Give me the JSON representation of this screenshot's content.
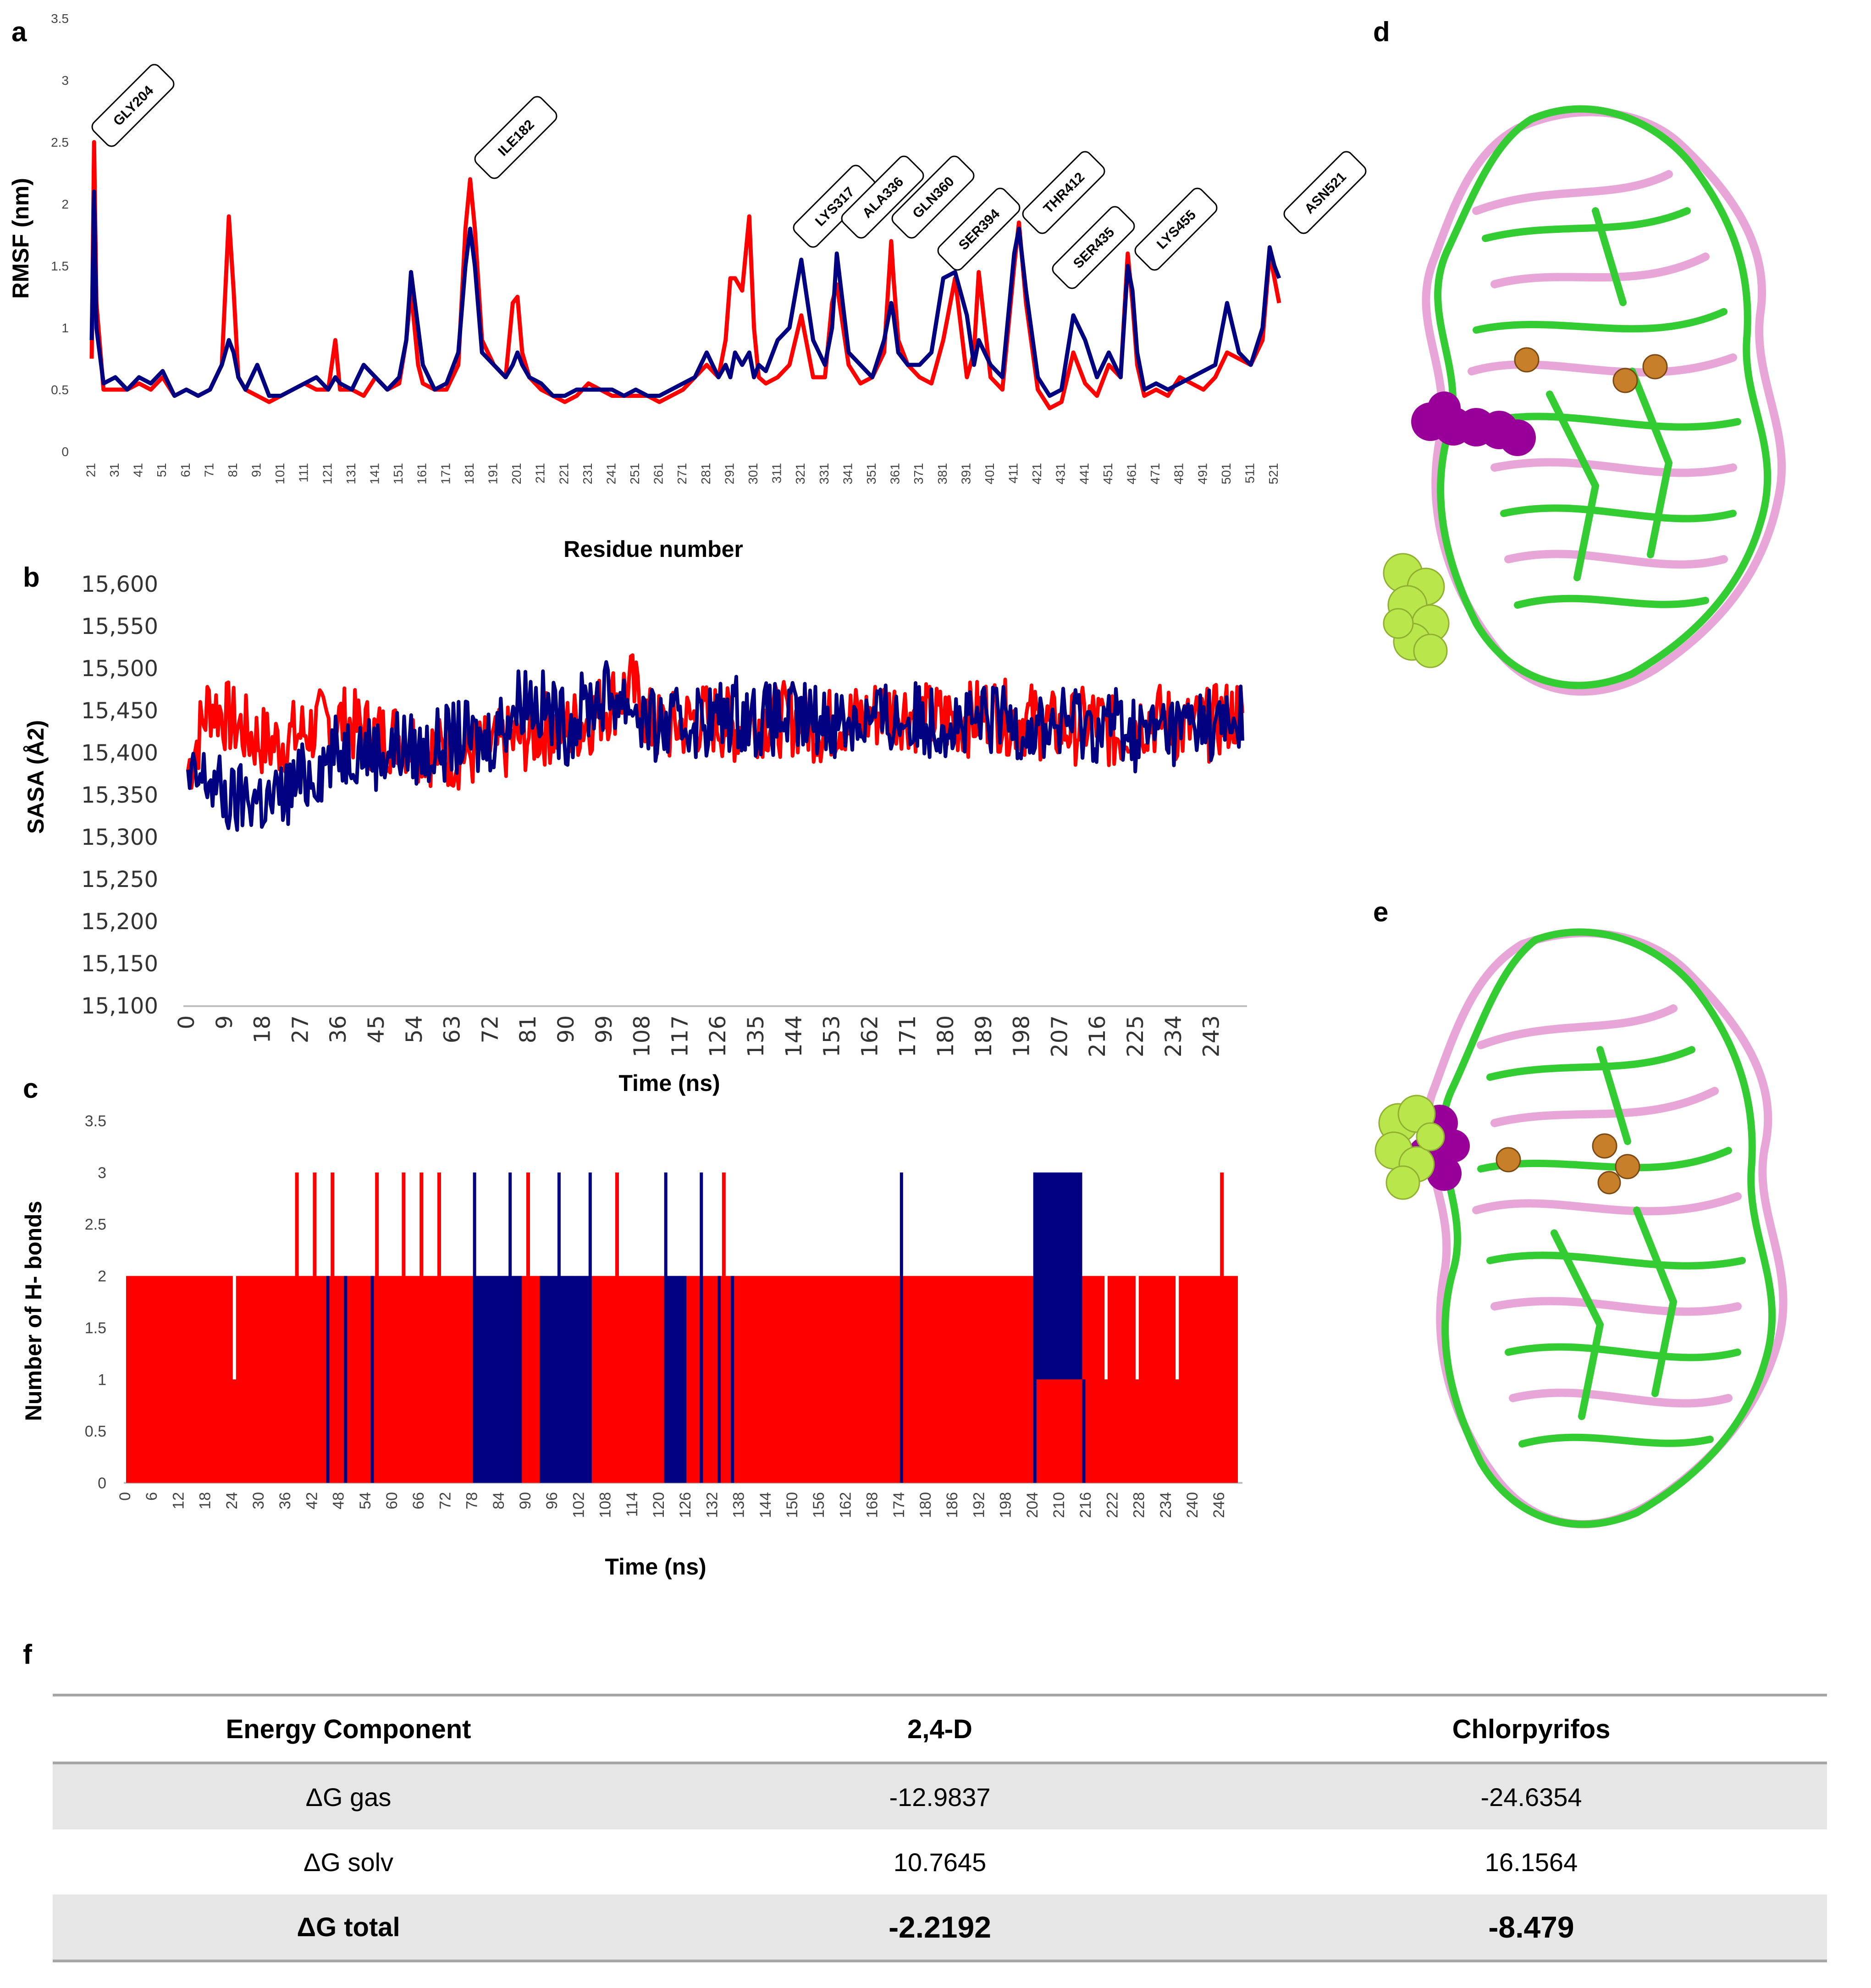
{
  "panels": {
    "a": "a",
    "b": "b",
    "c": "c",
    "d": "d",
    "e": "e",
    "f": "f"
  },
  "colors": {
    "red_series": "#ff0000",
    "blue_series": "#000080"
  },
  "chart_data": [
    {
      "panel": "a",
      "type": "line",
      "title": "",
      "xlabel": "Residue number",
      "ylabel": "RMSF (nm)",
      "ylim": [
        0,
        3.5
      ],
      "yticks": [
        "0",
        "0.5",
        "1",
        "1.5",
        "2",
        "2.5",
        "3",
        "3.5"
      ],
      "xticks": [
        "21",
        "31",
        "41",
        "51",
        "61",
        "71",
        "81",
        "91",
        "101",
        "111",
        "121",
        "131",
        "141",
        "151",
        "161",
        "171",
        "181",
        "191",
        "201",
        "211",
        "221",
        "231",
        "241",
        "251",
        "261",
        "271",
        "281",
        "291",
        "301",
        "311",
        "321",
        "331",
        "341",
        "351",
        "361",
        "371",
        "381",
        "391",
        "401",
        "411",
        "421",
        "431",
        "441",
        "451",
        "461",
        "471",
        "481",
        "491",
        "501",
        "511",
        "521"
      ],
      "grid": false,
      "series": [
        {
          "color": "#ff0000",
          "x": [
            21,
            22,
            23,
            26,
            31,
            36,
            41,
            46,
            51,
            56,
            61,
            66,
            71,
            76,
            79,
            81,
            83,
            86,
            91,
            96,
            101,
            106,
            111,
            116,
            121,
            124,
            126,
            131,
            136,
            141,
            146,
            151,
            154,
            156,
            159,
            161,
            166,
            171,
            176,
            179,
            181,
            183,
            186,
            191,
            196,
            199,
            201,
            203,
            206,
            211,
            216,
            221,
            226,
            231,
            236,
            241,
            246,
            251,
            256,
            261,
            266,
            271,
            276,
            281,
            286,
            289,
            291,
            293,
            296,
            299,
            301,
            303,
            306,
            311,
            316,
            321,
            326,
            331,
            334,
            336,
            341,
            346,
            351,
            356,
            359,
            360,
            362,
            366,
            371,
            376,
            381,
            386,
            391,
            394,
            396,
            401,
            406,
            411,
            413,
            416,
            421,
            426,
            431,
            436,
            441,
            446,
            451,
            456,
            459,
            461,
            463,
            466,
            471,
            476,
            481,
            486,
            491,
            496,
            501,
            506,
            511,
            516,
            519,
            521,
            523
          ],
          "y": [
            0.75,
            2.5,
            1.2,
            0.5,
            0.5,
            0.5,
            0.55,
            0.5,
            0.6,
            0.45,
            0.5,
            0.45,
            0.5,
            0.7,
            1.9,
            1.3,
            0.6,
            0.5,
            0.45,
            0.4,
            0.45,
            0.5,
            0.55,
            0.5,
            0.5,
            0.9,
            0.5,
            0.5,
            0.45,
            0.6,
            0.5,
            0.55,
            0.9,
            1.3,
            0.7,
            0.55,
            0.5,
            0.5,
            0.7,
            1.8,
            2.2,
            1.8,
            0.9,
            0.7,
            0.6,
            1.2,
            1.25,
            0.8,
            0.6,
            0.5,
            0.45,
            0.4,
            0.45,
            0.55,
            0.5,
            0.45,
            0.45,
            0.45,
            0.45,
            0.4,
            0.45,
            0.5,
            0.6,
            0.7,
            0.6,
            0.9,
            1.4,
            1.4,
            1.3,
            1.9,
            1.0,
            0.6,
            0.55,
            0.6,
            0.7,
            1.1,
            0.6,
            0.6,
            1.2,
            1.35,
            0.7,
            0.55,
            0.6,
            0.8,
            1.7,
            1.4,
            0.9,
            0.7,
            0.6,
            0.55,
            0.9,
            1.4,
            0.6,
            0.8,
            1.45,
            0.6,
            0.5,
            1.5,
            1.85,
            1.2,
            0.5,
            0.35,
            0.4,
            0.8,
            0.55,
            0.45,
            0.7,
            0.6,
            1.6,
            1.2,
            0.7,
            0.45,
            0.5,
            0.45,
            0.6,
            0.55,
            0.5,
            0.6,
            0.8,
            0.75,
            0.7,
            0.9,
            1.6,
            1.4,
            1.2
          ]
        },
        {
          "color": "#000080",
          "x": [
            21,
            22,
            23,
            26,
            31,
            36,
            41,
            46,
            51,
            56,
            61,
            66,
            71,
            76,
            79,
            81,
            83,
            86,
            91,
            96,
            101,
            106,
            111,
            116,
            121,
            124,
            126,
            131,
            136,
            141,
            146,
            151,
            154,
            156,
            159,
            161,
            166,
            171,
            176,
            179,
            181,
            183,
            186,
            191,
            196,
            199,
            201,
            203,
            206,
            211,
            216,
            221,
            226,
            231,
            236,
            241,
            246,
            251,
            256,
            261,
            266,
            271,
            276,
            281,
            286,
            289,
            291,
            293,
            296,
            299,
            301,
            303,
            306,
            311,
            316,
            321,
            326,
            331,
            334,
            336,
            341,
            346,
            351,
            356,
            359,
            360,
            362,
            366,
            371,
            376,
            381,
            386,
            391,
            394,
            396,
            401,
            406,
            411,
            413,
            416,
            421,
            426,
            431,
            436,
            441,
            446,
            451,
            456,
            459,
            461,
            463,
            466,
            471,
            476,
            481,
            486,
            491,
            496,
            501,
            506,
            511,
            516,
            519,
            521,
            523
          ],
          "y": [
            0.9,
            2.1,
            1.0,
            0.55,
            0.6,
            0.5,
            0.6,
            0.55,
            0.65,
            0.45,
            0.5,
            0.45,
            0.5,
            0.7,
            0.9,
            0.8,
            0.6,
            0.5,
            0.7,
            0.45,
            0.45,
            0.5,
            0.55,
            0.6,
            0.5,
            0.6,
            0.55,
            0.5,
            0.7,
            0.6,
            0.5,
            0.6,
            0.9,
            1.45,
            1.0,
            0.7,
            0.5,
            0.55,
            0.8,
            1.5,
            1.8,
            1.5,
            0.8,
            0.7,
            0.6,
            0.7,
            0.8,
            0.7,
            0.6,
            0.55,
            0.45,
            0.45,
            0.5,
            0.5,
            0.5,
            0.5,
            0.45,
            0.5,
            0.45,
            0.45,
            0.5,
            0.55,
            0.6,
            0.8,
            0.6,
            0.7,
            0.6,
            0.8,
            0.7,
            0.8,
            0.6,
            0.7,
            0.65,
            0.9,
            1.0,
            1.55,
            0.9,
            0.7,
            1.0,
            1.6,
            0.8,
            0.7,
            0.6,
            0.9,
            1.2,
            1.1,
            0.8,
            0.7,
            0.7,
            0.8,
            1.4,
            1.45,
            1.1,
            0.7,
            0.9,
            0.7,
            0.6,
            1.6,
            1.8,
            1.3,
            0.6,
            0.45,
            0.5,
            1.1,
            0.9,
            0.6,
            0.8,
            0.6,
            1.5,
            1.3,
            0.8,
            0.5,
            0.55,
            0.5,
            0.55,
            0.6,
            0.65,
            0.7,
            1.2,
            0.8,
            0.7,
            1.0,
            1.65,
            1.5,
            1.4
          ]
        }
      ],
      "annotations": [
        "GLY204",
        "ILE182",
        "LYS317",
        "ALA336",
        "GLN360",
        "SER394",
        "THR412",
        "SER435",
        "LYS455",
        "ASN521"
      ]
    },
    {
      "panel": "b",
      "type": "line",
      "title": "",
      "xlabel": "Time (ns)",
      "ylabel": "SASA (Å2)",
      "ylim": [
        15100,
        15600
      ],
      "yticks": [
        "15,100",
        "15,150",
        "15,200",
        "15,250",
        "15,300",
        "15,350",
        "15,400",
        "15,450",
        "15,500",
        "15,550",
        "15,600"
      ],
      "xticks": [
        "0",
        "9",
        "18",
        "27",
        "36",
        "45",
        "54",
        "63",
        "72",
        "81",
        "90",
        "99",
        "108",
        "117",
        "126",
        "135",
        "144",
        "153",
        "162",
        "171",
        "180",
        "189",
        "198",
        "207",
        "216",
        "225",
        "234",
        "243"
      ],
      "grid": false,
      "series": [
        {
          "color": "#ff0000",
          "x": [
            0,
            5,
            10,
            15,
            20,
            25,
            30,
            35,
            40,
            45,
            50,
            55,
            60,
            65,
            70,
            75,
            80,
            85,
            90,
            95,
            100,
            105,
            110,
            115,
            120,
            125,
            130,
            135,
            140,
            145,
            150,
            155,
            160,
            165,
            170,
            175,
            180,
            185,
            190,
            195,
            200,
            205,
            210,
            215,
            220,
            225,
            230,
            235,
            240,
            245,
            250
          ],
          "y": [
            15380,
            15460,
            15440,
            15420,
            15410,
            15420,
            15430,
            15440,
            15430,
            15420,
            15420,
            15410,
            15400,
            15400,
            15400,
            15410,
            15420,
            15430,
            15430,
            15440,
            15460,
            15480,
            15430,
            15430,
            15440,
            15440,
            15430,
            15440,
            15440,
            15440,
            15430,
            15440,
            15440,
            15450,
            15450,
            15440,
            15440,
            15440,
            15450,
            15440,
            15440,
            15430,
            15430,
            15440,
            15420,
            15440,
            15440,
            15430,
            15430,
            15440,
            15450
          ]
        },
        {
          "color": "#000080",
          "x": [
            0,
            5,
            10,
            15,
            20,
            25,
            30,
            35,
            40,
            45,
            50,
            55,
            60,
            65,
            70,
            75,
            80,
            85,
            90,
            95,
            100,
            105,
            110,
            115,
            120,
            125,
            130,
            135,
            140,
            145,
            150,
            155,
            160,
            165,
            170,
            175,
            180,
            185,
            190,
            195,
            200,
            205,
            210,
            215,
            220,
            225,
            230,
            235,
            240,
            245,
            250
          ],
          "y": [
            15360,
            15370,
            15340,
            15350,
            15340,
            15360,
            15380,
            15400,
            15410,
            15400,
            15410,
            15400,
            15410,
            15420,
            15410,
            15440,
            15470,
            15450,
            15430,
            15460,
            15470,
            15460,
            15430,
            15430,
            15440,
            15440,
            15450,
            15440,
            15440,
            15440,
            15440,
            15440,
            15440,
            15440,
            15440,
            15440,
            15440,
            15430,
            15440,
            15440,
            15430,
            15430,
            15440,
            15430,
            15440,
            15420,
            15430,
            15430,
            15440,
            15430,
            15440
          ]
        }
      ]
    },
    {
      "panel": "c",
      "type": "bar",
      "title": "",
      "xlabel": "Time (ns)",
      "ylabel": "Number of H- bonds",
      "ylim": [
        0,
        3.5
      ],
      "yticks": [
        "0",
        "0.5",
        "1",
        "1.5",
        "2",
        "2.5",
        "3",
        "3.5"
      ],
      "xticks": [
        "0",
        "6",
        "12",
        "18",
        "24",
        "30",
        "36",
        "42",
        "48",
        "54",
        "60",
        "66",
        "72",
        "78",
        "84",
        "90",
        "96",
        "102",
        "108",
        "114",
        "120",
        "126",
        "132",
        "138",
        "144",
        "150",
        "156",
        "162",
        "168",
        "174",
        "180",
        "186",
        "192",
        "198",
        "204",
        "210",
        "216",
        "222",
        "228",
        "234",
        "240",
        "246"
      ],
      "grid": false,
      "series": [
        {
          "color": "#ff0000",
          "x": [
            0,
            24,
            38,
            40,
            42,
            44,
            46,
            56,
            62,
            64,
            66,
            70,
            78,
            90,
            92,
            95,
            110,
            118,
            124,
            134,
            150,
            175,
            200,
            212,
            220,
            224,
            227,
            232,
            236,
            246
          ],
          "y": [
            2,
            1,
            3,
            2,
            3,
            2,
            3,
            3,
            3,
            2,
            3,
            3,
            2,
            3,
            2,
            1,
            3,
            2,
            2,
            3,
            2,
            2,
            2,
            3,
            1,
            2,
            1,
            2,
            1,
            3
          ]
        },
        {
          "color": "#000080",
          "x": [
            45,
            49,
            55,
            78,
            86,
            93,
            97,
            100,
            104,
            121,
            124,
            129,
            133,
            136,
            174,
            204,
            215
          ],
          "y": [
            2,
            2,
            2,
            3,
            3,
            2,
            3,
            2,
            3,
            3,
            2,
            3,
            2,
            2,
            3,
            3,
            1
          ]
        }
      ]
    }
  ],
  "table": {
    "headers": [
      "Energy Component",
      "2,4-D",
      "Chlorpyrifos"
    ],
    "rows": [
      [
        "ΔG gas",
        "-12.9837",
        "-24.6354"
      ],
      [
        "ΔG solv",
        "10.7645",
        "16.1564"
      ],
      [
        "ΔG total",
        "-2.2192",
        "-8.479"
      ]
    ]
  },
  "structures": {
    "d": {
      "protein_colors": [
        "#33cc33",
        "#e8a5d8"
      ],
      "ligand_colors": [
        "#990099",
        "#b9e64a"
      ],
      "ion_color": "#c87f2a"
    },
    "e": {
      "protein_colors": [
        "#33cc33",
        "#e8a5d8"
      ],
      "ligand_colors": [
        "#990099",
        "#b9e64a"
      ],
      "ion_color": "#c87f2a"
    }
  }
}
